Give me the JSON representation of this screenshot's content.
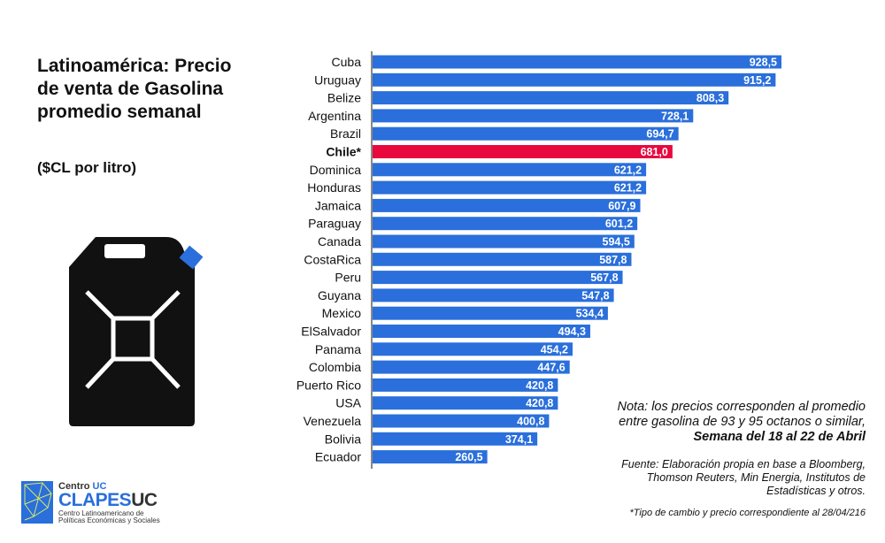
{
  "title": "Latinoamérica: Precio de venta de Gasolina promedio semanal",
  "subtitle": "($CL por litro)",
  "colors": {
    "bar": "#2a6fdb",
    "highlight": "#e8083e",
    "text": "#111111"
  },
  "notes": {
    "nota_line1": "Nota: los precios corresponden al promedio",
    "nota_line2": "entre gasolina de 93 y 95 octanos o similar,",
    "nota_line3": "Semana del 18 al 22 de Abril",
    "fuente_line1": "Fuente: Elaboración propia en base a Bloomberg,",
    "fuente_line2": "Thomson Reuters, Min Energia, Institutos de",
    "fuente_line3": "Estadísticas y otros.",
    "tipo_cambio": "*Tipo de cambio y precio correspondiente al 28/04/216"
  },
  "logo": {
    "centro_prefix": "Centro ",
    "centro_uc": "UC",
    "clapes": "CLAPES",
    "uc": "UC",
    "line1": "Centro Latinoamericano de",
    "line2": "Políticas Económicas y Sociales"
  },
  "chart_data": {
    "type": "bar",
    "orientation": "horizontal",
    "title": "Latinoamérica: Precio de venta de Gasolina promedio semanal",
    "xlabel": "",
    "ylabel": "($CL por litro)",
    "xlim": [
      0,
      928.5
    ],
    "grid": false,
    "highlight": "Chile*",
    "categories": [
      "Cuba",
      "Uruguay",
      "Belize",
      "Argentina",
      "Brazil",
      "Chile*",
      "Dominica",
      "Honduras",
      "Jamaica",
      "Paraguay",
      "Canada",
      "CostaRica",
      "Peru",
      "Guyana",
      "Mexico",
      "ElSalvador",
      "Panama",
      "Colombia",
      "Puerto Rico",
      "USA",
      "Venezuela",
      "Bolivia",
      "Ecuador"
    ],
    "values": [
      928.5,
      915.2,
      808.3,
      728.1,
      694.7,
      681.0,
      621.2,
      621.2,
      607.9,
      601.2,
      594.5,
      587.8,
      567.8,
      547.8,
      534.4,
      494.3,
      454.2,
      447.6,
      420.8,
      420.8,
      400.8,
      374.1,
      260.5
    ],
    "labels": [
      "928,5",
      "915,2",
      "808,3",
      "728,1",
      "694,7",
      "681,0",
      "621,2",
      "621,2",
      "607,9",
      "601,2",
      "594,5",
      "587,8",
      "567,8",
      "547,8",
      "534,4",
      "494,3",
      "454,2",
      "447,6",
      "420,8",
      "420,8",
      "400,8",
      "374,1",
      "260,5"
    ]
  }
}
